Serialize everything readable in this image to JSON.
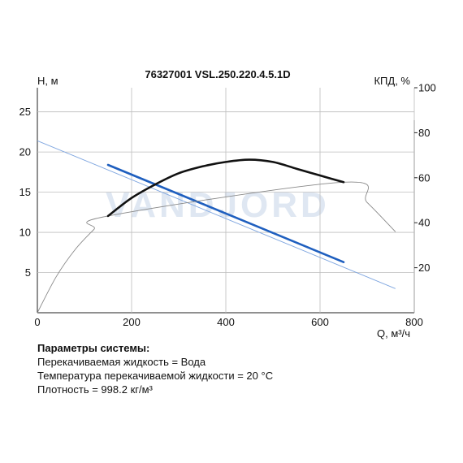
{
  "chart_data": {
    "type": "line",
    "title": "76327001 VSL.250.220.4.5.1D",
    "watermark": "VANDJORD",
    "ylabel_left": "H, м",
    "ylabel_right": "КПД, %",
    "xlabel": "Q, м³/ч",
    "xlim": [
      0,
      800
    ],
    "ylim_left": [
      0,
      28
    ],
    "ylim_right": [
      0,
      100
    ],
    "x_ticks": [
      "0",
      "200",
      "400",
      "600",
      "800"
    ],
    "y_left_ticks": [
      "5",
      "10",
      "15",
      "20",
      "25"
    ],
    "y_right_ticks": [
      "20",
      "40",
      "60",
      "80",
      "100"
    ],
    "grid": true,
    "series": [
      {
        "role": "head",
        "color": "#1f5fbf",
        "extended_x": [
          0,
          760
        ],
        "extended_y": [
          21.4,
          3.0
        ],
        "working_x": [
          150,
          650
        ],
        "working_y": [
          18.4,
          6.3
        ]
      },
      {
        "role": "efficiency",
        "color": "#111111",
        "extended_x": [
          0,
          40,
          80,
          120,
          150,
          650,
          700,
          760
        ],
        "extended_y": [
          0,
          16,
          28,
          37,
          43,
          58,
          49,
          36
        ],
        "working_x": [
          150,
          200,
          250,
          300,
          350,
          400,
          450,
          500,
          550,
          600,
          650
        ],
        "working_y": [
          43,
          51,
          57,
          62,
          65,
          67,
          68,
          67,
          64,
          61,
          58
        ]
      }
    ]
  },
  "params": {
    "heading": "Параметры системы:",
    "lines": [
      "Перекачиваемая жидкость = Вода",
      "Температура перекачиваемой жидкости = 20 °C",
      "Плотность = 998.2 кг/м³"
    ]
  }
}
